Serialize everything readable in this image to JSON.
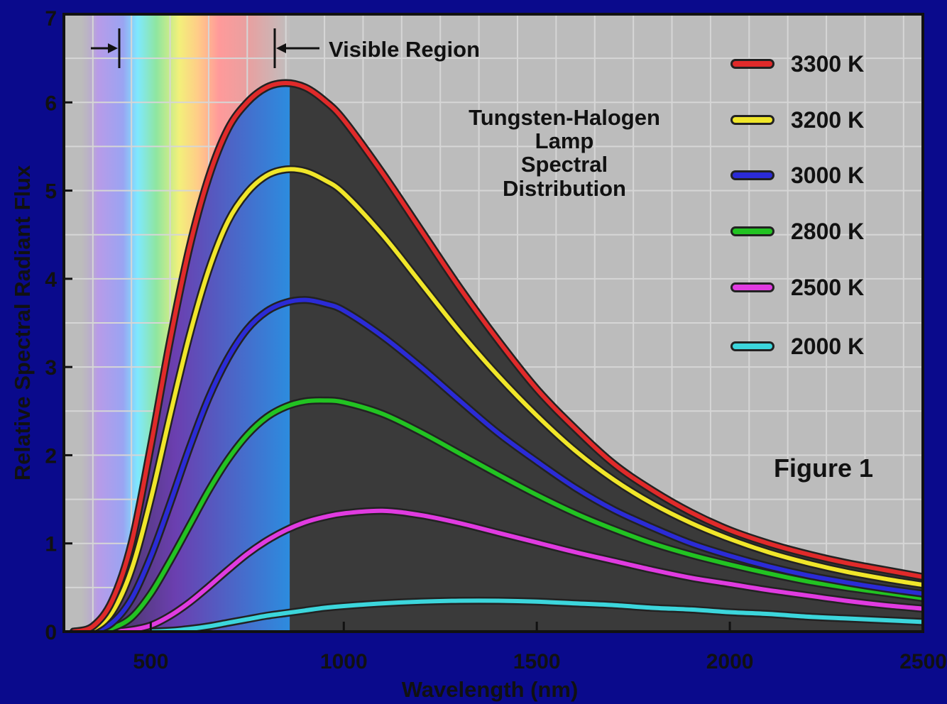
{
  "chart_data": {
    "type": "line",
    "title": "Tungsten-Halogen Lamp Spectral Distribution",
    "title_lines": [
      "Tungsten-Halogen",
      "Lamp",
      "Spectral",
      "Distribution"
    ],
    "xlabel": "Wavelength (nm)",
    "ylabel": "Relative Spectral Radiant Flux",
    "xlim": [
      275,
      2500
    ],
    "ylim": [
      0,
      7
    ],
    "x_ticks": [
      500,
      1000,
      1500,
      2000,
      2500
    ],
    "x_tick_labels": [
      "500",
      "1000",
      "1500",
      "2000",
      "2500"
    ],
    "y_ticks": [
      0,
      1,
      2,
      3,
      4,
      5,
      6,
      7
    ],
    "y_tick_labels": [
      "0",
      "1",
      "2",
      "3",
      "4",
      "5",
      "6",
      "7"
    ],
    "grid": true,
    "legend_position": "right",
    "annotation": "Visible Region",
    "visible_region_nm": [
      400,
      800
    ],
    "figure_label": "Figure 1",
    "series": [
      {
        "name": "3300 K",
        "color": "#e02a2a",
        "x": [
          300,
          350,
          400,
          450,
          500,
          550,
          600,
          650,
          700,
          750,
          800,
          850,
          900,
          950,
          1000,
          1100,
          1200,
          1300,
          1400,
          1500,
          1600,
          1700,
          1800,
          1900,
          2000,
          2100,
          2200,
          2300,
          2400,
          2500
        ],
        "values": [
          0.0,
          0.06,
          0.35,
          1.0,
          2.1,
          3.3,
          4.35,
          5.15,
          5.7,
          6.0,
          6.17,
          6.22,
          6.17,
          6.02,
          5.8,
          5.2,
          4.55,
          3.9,
          3.3,
          2.75,
          2.3,
          1.9,
          1.6,
          1.35,
          1.15,
          1.0,
          0.88,
          0.78,
          0.7,
          0.62
        ]
      },
      {
        "name": "3200 K",
        "color": "#f0e62a",
        "x": [
          300,
          350,
          400,
          450,
          500,
          550,
          600,
          650,
          700,
          750,
          800,
          850,
          900,
          950,
          1000,
          1100,
          1200,
          1300,
          1400,
          1500,
          1600,
          1700,
          1800,
          1900,
          2000,
          2100,
          2200,
          2300,
          2400,
          2500
        ],
        "values": [
          0.0,
          0.03,
          0.22,
          0.7,
          1.5,
          2.45,
          3.35,
          4.1,
          4.65,
          4.98,
          5.17,
          5.24,
          5.22,
          5.12,
          4.97,
          4.5,
          3.95,
          3.4,
          2.9,
          2.45,
          2.05,
          1.72,
          1.45,
          1.23,
          1.05,
          0.9,
          0.78,
          0.68,
          0.6,
          0.53
        ]
      },
      {
        "name": "3000 K",
        "color": "#2b2bd6",
        "x": [
          300,
          350,
          400,
          450,
          500,
          550,
          600,
          650,
          700,
          750,
          800,
          850,
          900,
          950,
          1000,
          1100,
          1200,
          1300,
          1400,
          1500,
          1600,
          1700,
          1800,
          1900,
          2000,
          2100,
          2200,
          2300,
          2400,
          2500
        ],
        "values": [
          0.0,
          0.01,
          0.1,
          0.37,
          0.85,
          1.45,
          2.08,
          2.65,
          3.1,
          3.43,
          3.63,
          3.73,
          3.76,
          3.72,
          3.64,
          3.35,
          3.0,
          2.62,
          2.25,
          1.93,
          1.63,
          1.38,
          1.18,
          1.0,
          0.86,
          0.74,
          0.64,
          0.56,
          0.49,
          0.43
        ]
      },
      {
        "name": "2800 K",
        "color": "#22c322",
        "x": [
          300,
          350,
          400,
          450,
          500,
          550,
          600,
          650,
          700,
          750,
          800,
          850,
          900,
          950,
          1000,
          1100,
          1200,
          1300,
          1400,
          1500,
          1600,
          1700,
          1800,
          1900,
          2000,
          2100,
          2200,
          2300,
          2400,
          2500
        ],
        "values": [
          0.0,
          0.0,
          0.04,
          0.16,
          0.43,
          0.8,
          1.2,
          1.6,
          1.95,
          2.23,
          2.43,
          2.55,
          2.61,
          2.62,
          2.6,
          2.47,
          2.26,
          2.02,
          1.78,
          1.55,
          1.34,
          1.16,
          1.0,
          0.87,
          0.76,
          0.66,
          0.57,
          0.5,
          0.44,
          0.38
        ]
      },
      {
        "name": "2500 K",
        "color": "#e03be0",
        "x": [
          300,
          350,
          400,
          450,
          500,
          550,
          600,
          650,
          700,
          750,
          800,
          850,
          900,
          950,
          1000,
          1100,
          1200,
          1300,
          1400,
          1500,
          1600,
          1700,
          1800,
          1900,
          2000,
          2100,
          2200,
          2300,
          2400,
          2500
        ],
        "values": [
          0.0,
          0.0,
          0.0,
          0.02,
          0.07,
          0.18,
          0.33,
          0.51,
          0.7,
          0.88,
          1.03,
          1.15,
          1.24,
          1.3,
          1.34,
          1.37,
          1.32,
          1.23,
          1.12,
          1.01,
          0.9,
          0.8,
          0.7,
          0.61,
          0.54,
          0.47,
          0.41,
          0.35,
          0.3,
          0.26
        ]
      },
      {
        "name": "2000 K",
        "color": "#3cd6dc",
        "x": [
          300,
          350,
          400,
          450,
          500,
          550,
          600,
          650,
          700,
          750,
          800,
          850,
          900,
          950,
          1000,
          1100,
          1200,
          1300,
          1400,
          1500,
          1600,
          1700,
          1800,
          1900,
          2000,
          2100,
          2200,
          2300,
          2400,
          2500
        ],
        "values": [
          0.0,
          0.0,
          0.0,
          0.0,
          0.0,
          0.01,
          0.03,
          0.06,
          0.1,
          0.14,
          0.18,
          0.21,
          0.24,
          0.27,
          0.29,
          0.32,
          0.34,
          0.35,
          0.35,
          0.34,
          0.32,
          0.3,
          0.27,
          0.25,
          0.22,
          0.2,
          0.17,
          0.15,
          0.13,
          0.11
        ]
      }
    ]
  }
}
